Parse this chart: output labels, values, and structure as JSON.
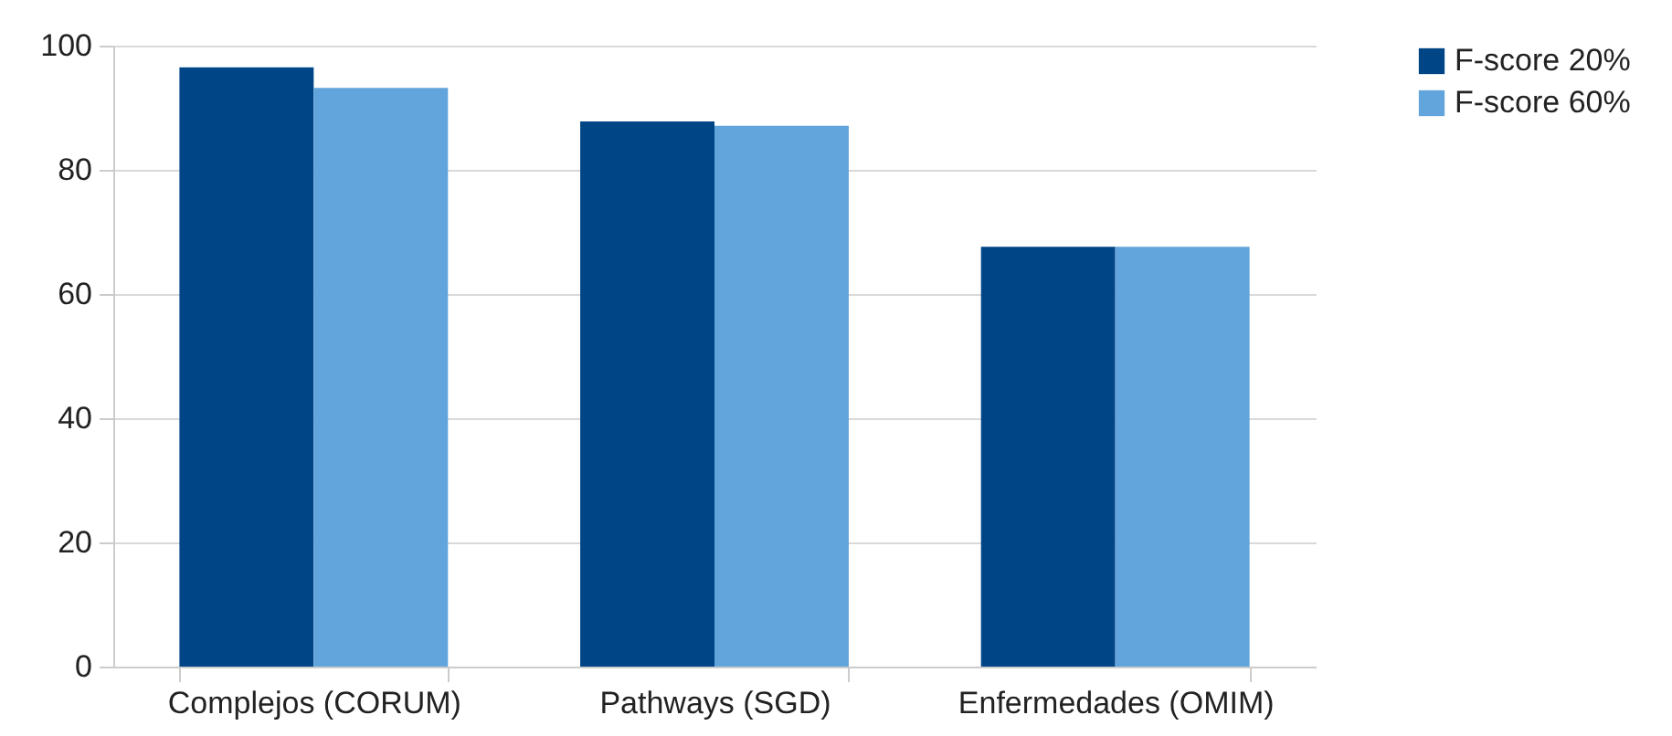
{
  "chart_data": {
    "type": "bar",
    "categories": [
      "Complejos (CORUM)",
      "Pathways (SGD)",
      "Enfermedades (OMIM)"
    ],
    "series": [
      {
        "name": "F-score 20%",
        "color": "#004586",
        "values": [
          96.5,
          87.8,
          67.6
        ]
      },
      {
        "name": "F-score 60%",
        "color": "#62a4dc",
        "values": [
          93.2,
          87.1,
          67.6
        ]
      }
    ],
    "ylim": [
      0,
      100
    ],
    "yticks": [
      0,
      20,
      40,
      60,
      80,
      100
    ],
    "grid": "y",
    "legend": "right"
  }
}
